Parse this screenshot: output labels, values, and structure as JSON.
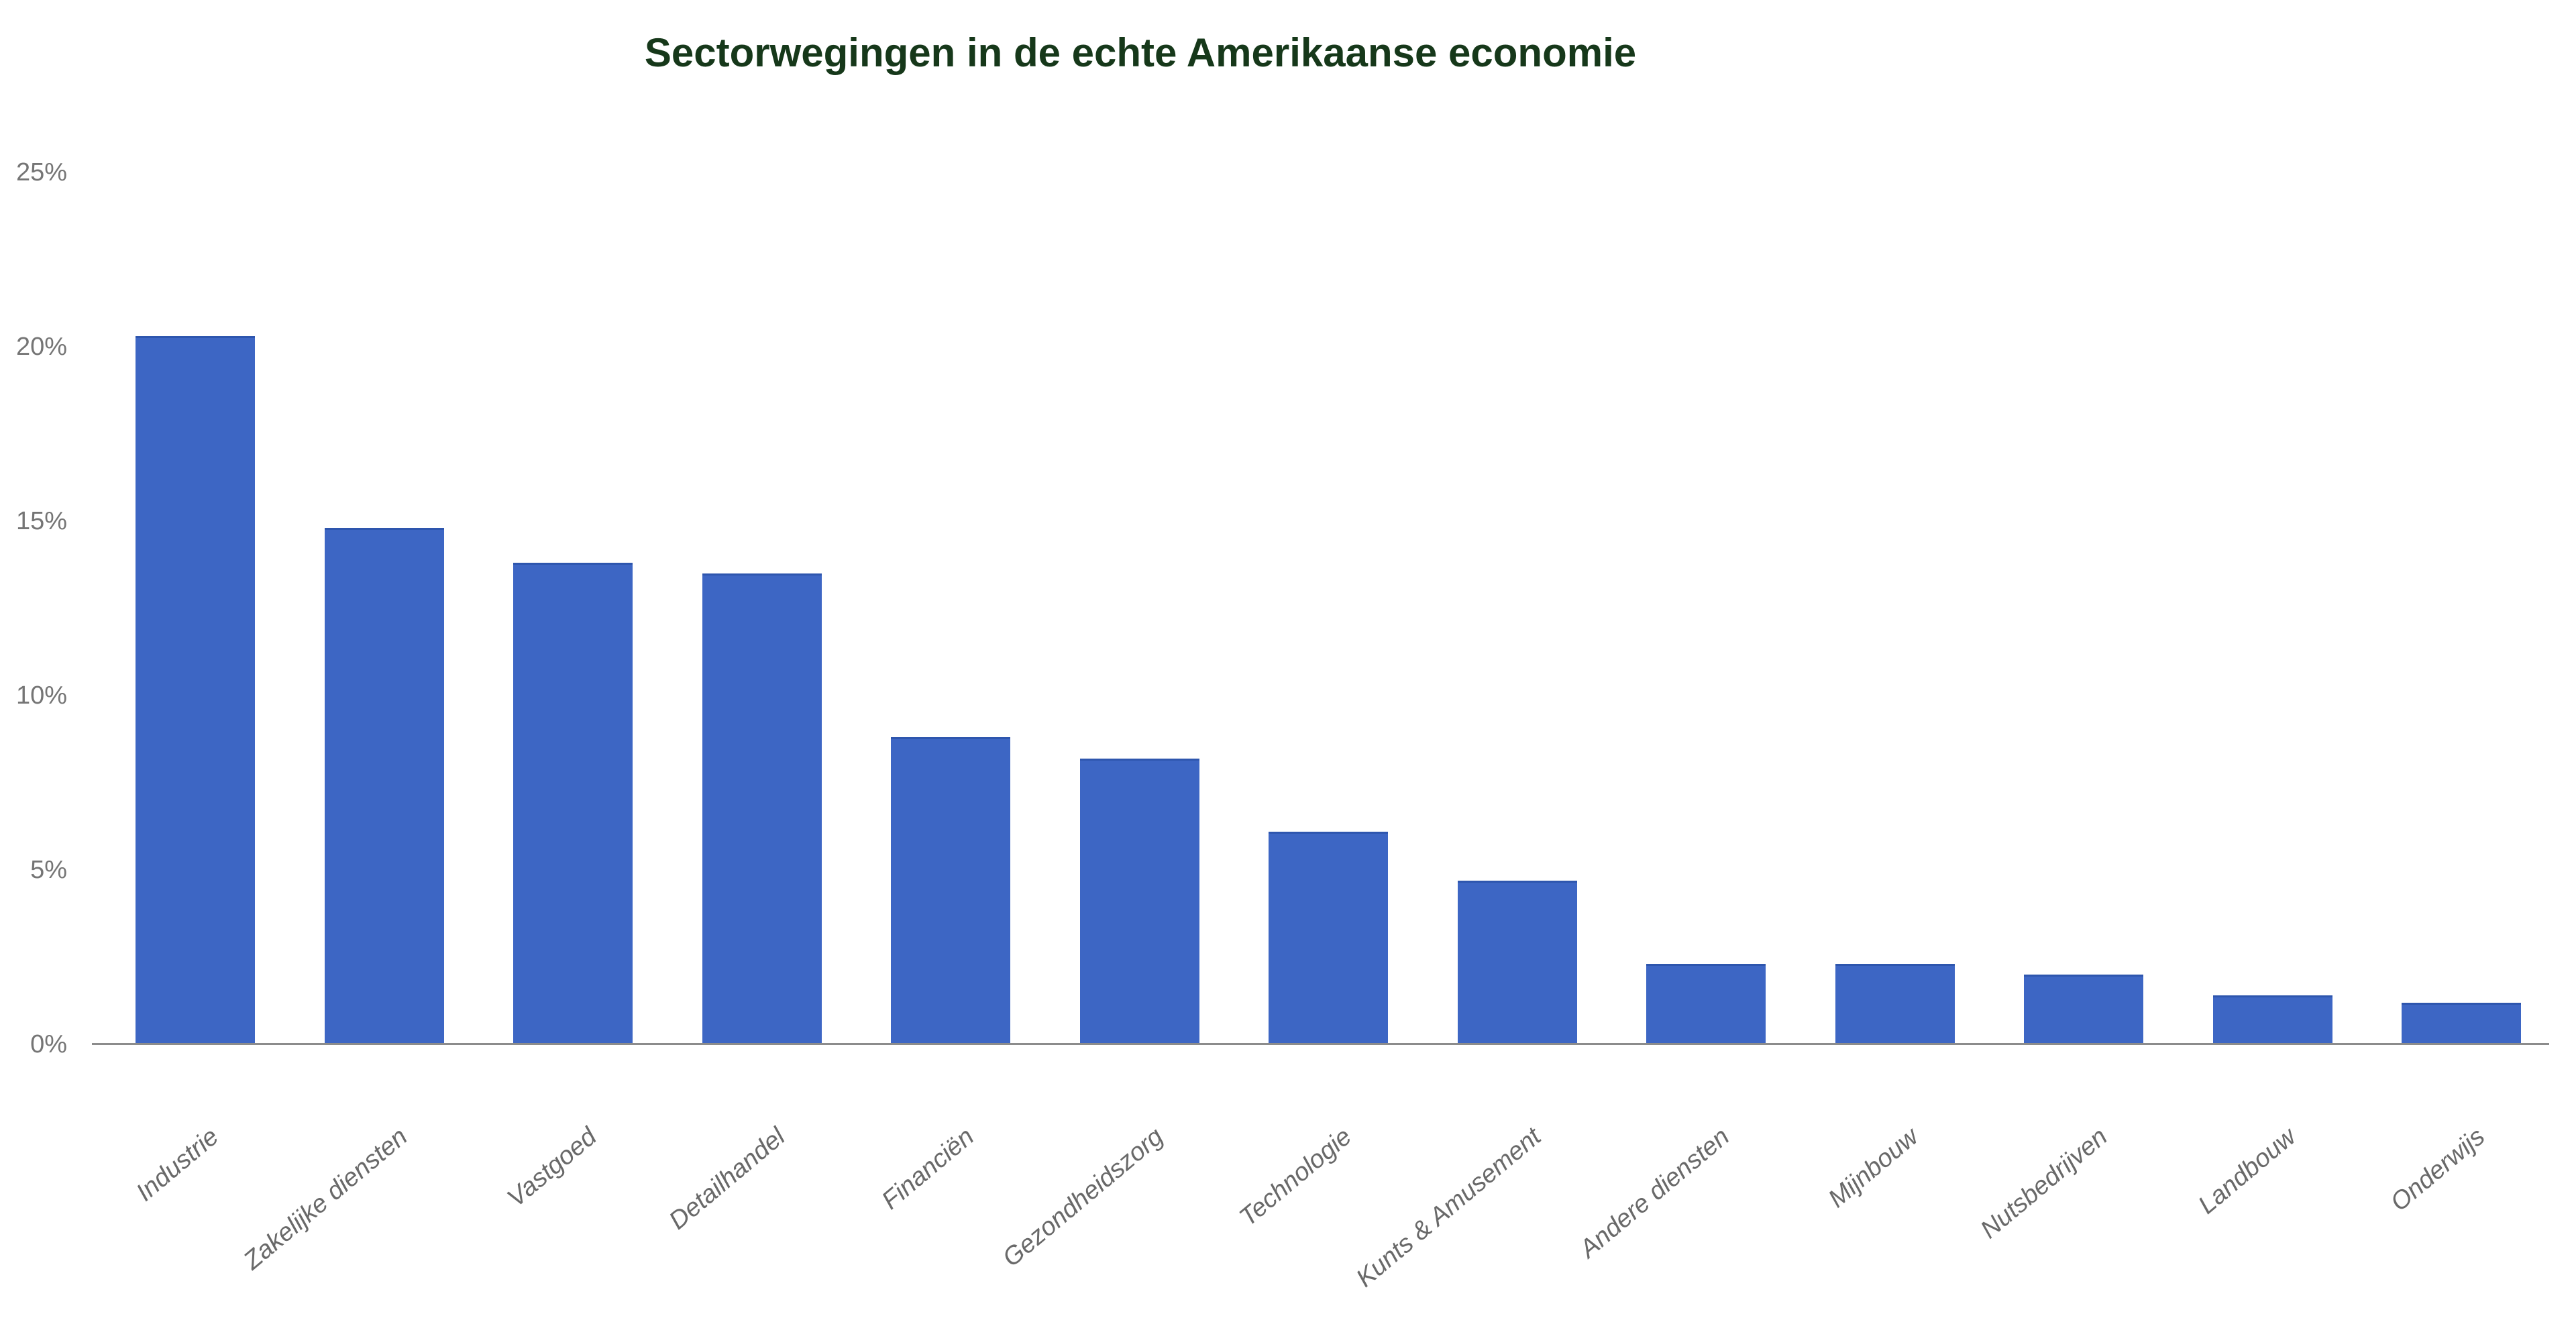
{
  "figure": {
    "title": "Sectorwegingen in de echte Amerikaanse economie"
  },
  "colors": {
    "background": "#FFFFFF",
    "title_text": "#16381A",
    "bar_fill": "#3D66C4",
    "bar_top_edge": "#2E56AE",
    "axis_line": "#8C8C8C",
    "y_tick_text": "#757575",
    "x_tick_text": "#696969"
  },
  "chart_data": {
    "type": "bar",
    "title": "Sectorwegingen in de echte Amerikaanse economie",
    "categories": [
      "Industrie",
      "Zakelijke diensten",
      "Vastgoed",
      "Detailhandel",
      "Financiën",
      "Gezondheidszorg",
      "Technologie",
      "Kunts & Amusement",
      "Andere diensten",
      "Mijnbouw",
      "Nutsbedrijven",
      "Landbouw",
      "Onderwijs"
    ],
    "values": [
      20.3,
      14.8,
      13.8,
      13.5,
      8.8,
      8.2,
      6.1,
      4.7,
      2.3,
      2.3,
      2.0,
      1.4,
      1.2
    ],
    "unit": "%",
    "xlabel": "",
    "ylabel": "",
    "y_ticks": [
      "0%",
      "5%",
      "10%",
      "15%",
      "20%",
      "25%"
    ],
    "ylim": [
      0,
      25
    ],
    "grid": false,
    "legend": "none",
    "x_tick_rotation_deg": 40,
    "bar_color": "#3D66C4"
  }
}
